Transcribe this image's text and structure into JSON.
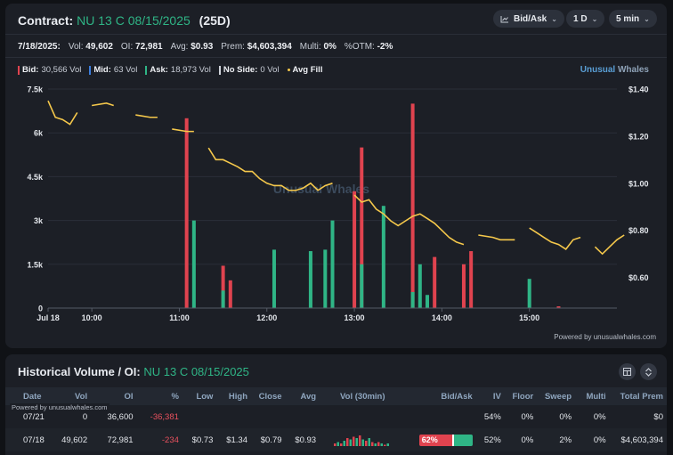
{
  "contract": {
    "prefix": "Contract:",
    "name": "NU 13 C 08/15/2025",
    "dte": "(25D)"
  },
  "controls": {
    "mode": "Bid/Ask",
    "range": "1 D",
    "interval": "5 min"
  },
  "stats": {
    "date": "7/18/2025:",
    "vol_label": "Vol:",
    "vol": "49,602",
    "oi_label": "OI:",
    "oi": "72,981",
    "avg_label": "Avg:",
    "avg": "$0.93",
    "prem_label": "Prem:",
    "prem": "$4,603,394",
    "multi_label": "Multi:",
    "multi": "0%",
    "otm_label": "%OTM:",
    "otm": "-2%"
  },
  "legend": {
    "bid_label": "Bid:",
    "bid": "30,566 Vol",
    "mid_label": "Mid:",
    "mid": "63 Vol",
    "ask_label": "Ask:",
    "ask": "18,973 Vol",
    "noside_label": "No Side:",
    "noside": "0 Vol",
    "avgfill": "Avg Fill"
  },
  "brand": {
    "a": "Unusual",
    "b": "Whales"
  },
  "watermark": "Unusual Whales",
  "powered": "Powered by unusualwhales.com",
  "colors": {
    "bid": "#e0434f",
    "mid": "#3b7ddd",
    "ask": "#2fb586",
    "noside": "#cfd3da",
    "avgfill": "#f5c84b",
    "accent": "#2fb586",
    "negative": "#e8515e"
  },
  "chart_data": {
    "type": "bar",
    "x_ticks": [
      "Jul 18",
      "10:00",
      "11:00",
      "12:00",
      "13:00",
      "14:00",
      "15:00"
    ],
    "x_tick_minutes": [
      570,
      600,
      660,
      720,
      780,
      840,
      900
    ],
    "x_range_minutes": [
      570,
      960
    ],
    "y_left_ticks": [
      "0",
      "1.5k",
      "3k",
      "4.5k",
      "6k",
      "7.5k"
    ],
    "y_left_range": [
      0,
      7500
    ],
    "y_right_ticks": [
      "$0.60",
      "$0.80",
      "$1.00",
      "$1.20",
      "$1.40"
    ],
    "y_right_range": [
      0.47,
      1.4
    ],
    "bid_bars": [
      {
        "t": 665,
        "v": 6500
      },
      {
        "t": 690,
        "v": 1450
      },
      {
        "t": 695,
        "v": 950
      },
      {
        "t": 780,
        "v": 4000
      },
      {
        "t": 785,
        "v": 5500
      },
      {
        "t": 820,
        "v": 7000
      },
      {
        "t": 835,
        "v": 1750
      },
      {
        "t": 855,
        "v": 1500
      },
      {
        "t": 860,
        "v": 1950
      },
      {
        "t": 920,
        "v": 60
      }
    ],
    "ask_bars": [
      {
        "t": 670,
        "v": 3000
      },
      {
        "t": 690,
        "v": 600
      },
      {
        "t": 725,
        "v": 2000
      },
      {
        "t": 750,
        "v": 1950
      },
      {
        "t": 760,
        "v": 2000
      },
      {
        "t": 765,
        "v": 3000
      },
      {
        "t": 785,
        "v": 1500
      },
      {
        "t": 800,
        "v": 3500
      },
      {
        "t": 820,
        "v": 550
      },
      {
        "t": 825,
        "v": 1500
      },
      {
        "t": 830,
        "v": 450
      },
      {
        "t": 900,
        "v": 1000
      }
    ],
    "avg_fill": [
      [
        570,
        1.35
      ],
      [
        575,
        1.28
      ],
      [
        580,
        1.27
      ],
      [
        585,
        1.25
      ],
      [
        590,
        1.3
      ],
      [
        600,
        1.33
      ],
      [
        610,
        1.34
      ],
      [
        615,
        1.33
      ],
      [
        630,
        1.29
      ],
      [
        640,
        1.28
      ],
      [
        645,
        1.28
      ],
      [
        655,
        1.23
      ],
      [
        665,
        1.22
      ],
      [
        670,
        1.22
      ],
      [
        680,
        1.15
      ],
      [
        685,
        1.1
      ],
      [
        690,
        1.1
      ],
      [
        700,
        1.07
      ],
      [
        705,
        1.05
      ],
      [
        710,
        1.05
      ],
      [
        715,
        1.02
      ],
      [
        720,
        1.0
      ],
      [
        725,
        0.99
      ],
      [
        730,
        0.99
      ],
      [
        735,
        0.97
      ],
      [
        740,
        0.97
      ],
      [
        745,
        0.98
      ],
      [
        750,
        1.0
      ],
      [
        755,
        0.97
      ],
      [
        760,
        0.99
      ],
      [
        765,
        1.0
      ],
      [
        780,
        0.95
      ],
      [
        785,
        0.92
      ],
      [
        790,
        0.93
      ],
      [
        795,
        0.89
      ],
      [
        800,
        0.87
      ],
      [
        805,
        0.84
      ],
      [
        810,
        0.82
      ],
      [
        815,
        0.84
      ],
      [
        820,
        0.86
      ],
      [
        825,
        0.87
      ],
      [
        830,
        0.85
      ],
      [
        835,
        0.83
      ],
      [
        840,
        0.8
      ],
      [
        845,
        0.77
      ],
      [
        850,
        0.75
      ],
      [
        855,
        0.74
      ],
      [
        865,
        0.78
      ],
      [
        875,
        0.77
      ],
      [
        880,
        0.76
      ],
      [
        885,
        0.76
      ],
      [
        890,
        0.76
      ],
      [
        900,
        0.81
      ],
      [
        905,
        0.79
      ],
      [
        910,
        0.77
      ],
      [
        915,
        0.75
      ],
      [
        920,
        0.74
      ],
      [
        925,
        0.72
      ],
      [
        930,
        0.76
      ],
      [
        935,
        0.77
      ],
      [
        945,
        0.73
      ],
      [
        950,
        0.7
      ],
      [
        955,
        0.73
      ],
      [
        960,
        0.76
      ],
      [
        965,
        0.78
      ]
    ],
    "avg_fill_breaks": [
      [
        590,
        600
      ],
      [
        615,
        630
      ],
      [
        645,
        655
      ],
      [
        670,
        680
      ],
      [
        765,
        780
      ],
      [
        855,
        865
      ],
      [
        890,
        900
      ],
      [
        935,
        945
      ]
    ]
  },
  "history": {
    "title": "Historical Volume / OI:",
    "contract": "NU 13 C 08/15/2025",
    "powered": "Powered by unusualwhales.com",
    "columns": [
      "Date",
      "Vol",
      "OI",
      "%",
      "Low",
      "High",
      "Close",
      "Avg",
      "Vol (30min)",
      "Bid/Ask",
      "IV",
      "Floor",
      "Sweep",
      "Multi",
      "Total Prem"
    ],
    "rows": [
      {
        "date": "07/21",
        "vol": "0",
        "oi": "36,600",
        "chg": "-36,381",
        "low": "",
        "high": "",
        "close": "",
        "avg": "",
        "bidask": "",
        "iv": "54%",
        "floor": "0%",
        "sweep": "0%",
        "multi": "0%",
        "prem": "$0"
      },
      {
        "date": "07/18",
        "vol": "49,602",
        "oi": "72,981",
        "chg": "-234",
        "low": "$0.73",
        "high": "$1.34",
        "close": "$0.79",
        "avg": "$0.93",
        "bidask": "62%",
        "iv": "52%",
        "floor": "0%",
        "sweep": "2%",
        "multi": "0%",
        "prem": "$4,603,394"
      }
    ],
    "bid_pct": 62
  }
}
